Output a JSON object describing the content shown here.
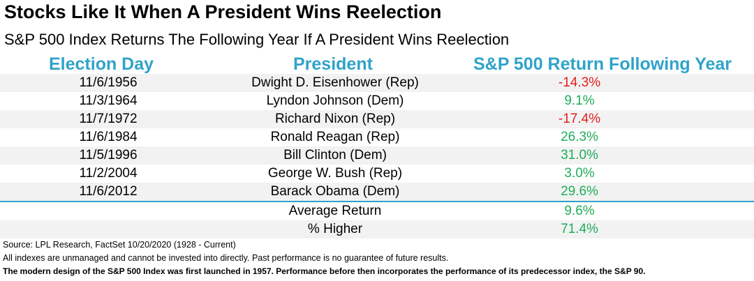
{
  "title": "Stocks Like It When A President Wins Reelection",
  "subtitle": "S&P 500 Index Returns The Following Year If A President Wins Reelection",
  "colors": {
    "header": "#2fa3c9",
    "negative": "#e0201c",
    "positive": "#1fae5a",
    "row_shade": "#f2f2f2"
  },
  "chart_data": {
    "type": "table",
    "columns": [
      "Election Day",
      "President",
      "S&P 500 Return Following Year"
    ],
    "rows": [
      {
        "date": "11/6/1956",
        "president": "Dwight D. Eisenhower (Rep)",
        "return": "-14.3%"
      },
      {
        "date": "11/3/1964",
        "president": "Lyndon Johnson (Dem)",
        "return": "9.1%"
      },
      {
        "date": "11/7/1972",
        "president": "Richard Nixon (Rep)",
        "return": "-17.4%"
      },
      {
        "date": "11/6/1984",
        "president": "Ronald Reagan (Rep)",
        "return": "26.3%"
      },
      {
        "date": "11/5/1996",
        "president": "Bill Clinton (Dem)",
        "return": "31.0%"
      },
      {
        "date": "11/2/2004",
        "president": "George W. Bush (Rep)",
        "return": "3.0%"
      },
      {
        "date": "11/6/2012",
        "president": "Barack Obama (Dem)",
        "return": "29.6%"
      }
    ],
    "summary": [
      {
        "label": "Average Return",
        "value": "9.6%"
      },
      {
        "label": "% Higher",
        "value": "71.4%"
      }
    ]
  },
  "notes": {
    "source": "Source: LPL Research, FactSet 10/20/2020 (1928 - Current)",
    "disclaimer": "All indexes are unmanaged and cannot be invested into directly. Past performance is no guarantee of future results.",
    "footnote": "The modern design of the S&P 500 Index was first launched in 1957. Performance before then incorporates the performance of its  predecessor index, the S&P 90."
  }
}
